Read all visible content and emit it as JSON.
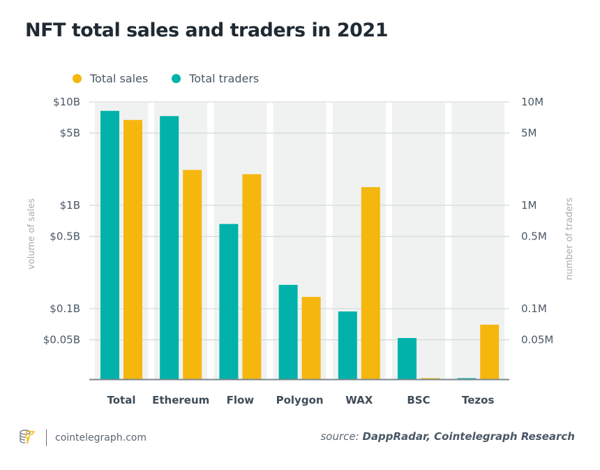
{
  "header": {
    "title": "NFT total sales and traders in 2021"
  },
  "legend": [
    {
      "label": "Total sales",
      "color": "#f5b70e"
    },
    {
      "label": "Total traders",
      "color": "#00b2a9"
    }
  ],
  "footer": {
    "logo_icon": "cointelegraph-logo-icon",
    "site": "cointelegraph.com",
    "source_prefix": "source:",
    "source_text": "DappRadar, Cointelegraph Research"
  },
  "chart_data": {
    "type": "bar",
    "title": "NFT total sales and traders in 2021",
    "scale": "log",
    "categories": [
      "Total",
      "Ethereum",
      "Flow",
      "Polygon",
      "WAX",
      "BSC",
      "Tezos"
    ],
    "series": [
      {
        "name": "Total traders",
        "axis": "right",
        "unit": "M",
        "color": "#00b2a9",
        "values": [
          8.2,
          7.3,
          0.66,
          0.17,
          0.094,
          0.052,
          0.021
        ]
      },
      {
        "name": "Total sales",
        "axis": "left",
        "unit": "B",
        "color": "#f5b70e",
        "values": [
          6.7,
          2.2,
          2.0,
          0.13,
          1.5,
          0.021,
          0.07
        ]
      }
    ],
    "left_axis": {
      "label": "volume of sales",
      "ticks": [
        10,
        5,
        1,
        0.5,
        0.1,
        0.05
      ],
      "tick_labels": [
        "$10B",
        "$5B",
        "$1B",
        "$0.5B",
        "$0.1B",
        "$0.05B"
      ],
      "range": [
        0.02,
        10
      ]
    },
    "right_axis": {
      "label": "number of traders",
      "ticks": [
        10,
        5,
        1,
        0.5,
        0.1,
        0.05
      ],
      "tick_labels": [
        "10M",
        "5M",
        "1M",
        "0.5M",
        "0.1M",
        "0.05M"
      ],
      "range": [
        0.02,
        10
      ]
    },
    "grid": true,
    "legend_position": "top-left"
  }
}
